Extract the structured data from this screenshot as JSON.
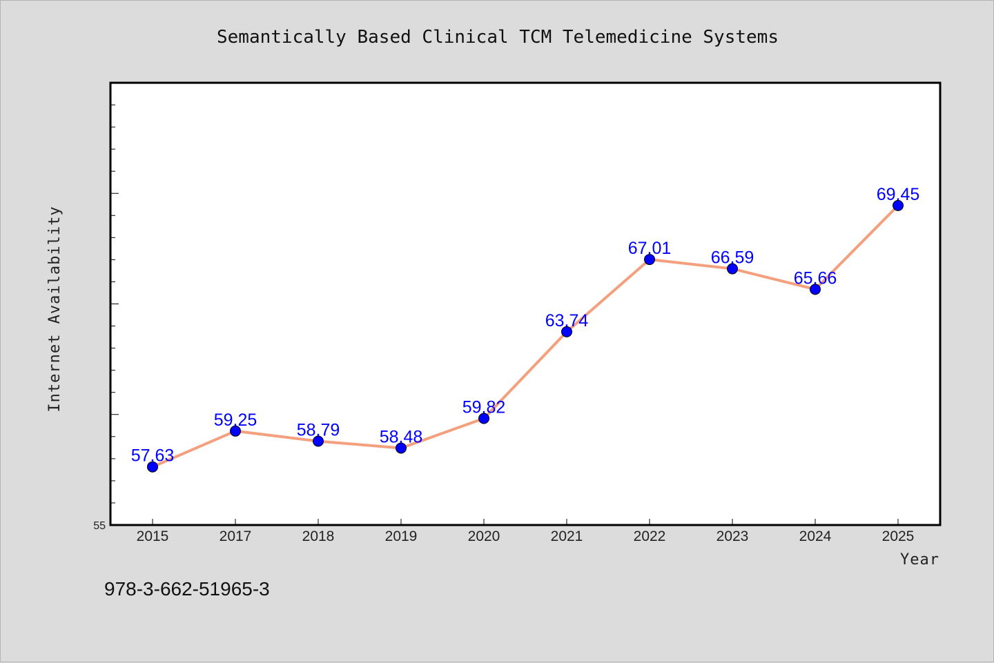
{
  "chart_data": {
    "type": "line",
    "title": "Semantically Based Clinical TCM Telemedicine Systems",
    "xlabel": "Year",
    "ylabel": "Internet Availability",
    "categories": [
      "2015",
      "2017",
      "2018",
      "2019",
      "2020",
      "2021",
      "2022",
      "2023",
      "2024",
      "2025"
    ],
    "series": [
      {
        "values": [
          57.63,
          59.25,
          58.79,
          58.48,
          59.82,
          63.74,
          67.01,
          66.59,
          65.66,
          69.45
        ],
        "labels": [
          "57.63",
          "59.25",
          "58.79",
          "58.48",
          "59.82",
          "63.74",
          "67.01",
          "66.59",
          "65.66",
          "69.45"
        ],
        "line_color": "#f4a07e",
        "marker_color": "#0000ff"
      }
    ],
    "ylim": [
      55,
      75
    ],
    "y_tick_label": "55",
    "grid": false,
    "legend": "none"
  },
  "footer": {
    "code": "978-3-662-51965-3"
  },
  "colors": {
    "background": "#dcdcdc",
    "plot_area": "#ffffff",
    "line": "#f4a07e",
    "marker": "#0000ff",
    "label": "#0000ff"
  }
}
